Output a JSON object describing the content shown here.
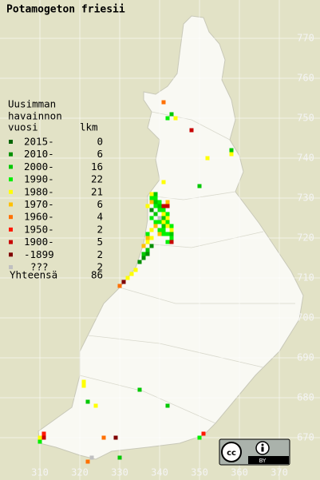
{
  "map_data": {
    "title": "Potamogeton friesii",
    "legend_heading": [
      "Uusimman",
      "havainnon",
      "vuosi"
    ],
    "count_heading": "lkm",
    "entries": [
      {
        "label": "2015-",
        "count": 0,
        "color": "#006400",
        "squares": []
      },
      {
        "label": "2010-",
        "count": 6,
        "color": "#009000",
        "squares": [
          [
            338,
            718
          ],
          [
            337,
            716
          ],
          [
            336,
            715
          ],
          [
            335,
            714
          ],
          [
            338,
            727
          ],
          [
            338,
            731
          ]
        ]
      },
      {
        "label": "2000-",
        "count": 16,
        "color": "#00c800",
        "squares": [
          [
            343,
            751
          ],
          [
            358,
            742
          ],
          [
            350,
            733
          ],
          [
            339,
            731
          ],
          [
            339,
            729
          ],
          [
            340,
            728
          ],
          [
            339,
            726
          ],
          [
            341,
            725
          ],
          [
            341,
            723
          ],
          [
            343,
            721
          ],
          [
            337,
            717
          ],
          [
            336,
            716
          ],
          [
            335,
            682
          ],
          [
            322,
            679
          ],
          [
            342,
            678
          ],
          [
            330,
            665
          ]
        ]
      },
      {
        "label": "1990-",
        "count": 22,
        "color": "#00f000",
        "squares": [
          [
            342,
            750
          ],
          [
            339,
            730
          ],
          [
            340,
            727
          ],
          [
            341,
            722
          ],
          [
            343,
            720
          ],
          [
            342,
            721
          ],
          [
            339,
            724
          ],
          [
            310,
            669
          ],
          [
            350,
            670
          ],
          [
            338,
            730
          ],
          [
            342,
            724
          ],
          [
            341,
            727
          ],
          [
            340,
            729
          ],
          [
            341,
            721
          ],
          [
            343,
            723
          ],
          [
            342,
            719
          ],
          [
            339,
            728
          ],
          [
            338,
            725
          ],
          [
            340,
            722
          ],
          [
            337,
            721
          ],
          [
            342,
            726
          ],
          [
            340,
            724
          ]
        ]
      },
      {
        "label": "1980-",
        "count": 21,
        "color": "#ffff00",
        "squares": [
          [
            344,
            750
          ],
          [
            358,
            741
          ],
          [
            352,
            740
          ],
          [
            341,
            734
          ],
          [
            338,
            731
          ],
          [
            337,
            728
          ],
          [
            341,
            726
          ],
          [
            342,
            725
          ],
          [
            341,
            724
          ],
          [
            342,
            723
          ],
          [
            343,
            722
          ],
          [
            338,
            722
          ],
          [
            338,
            720
          ],
          [
            337,
            719
          ],
          [
            334,
            712
          ],
          [
            333,
            711
          ],
          [
            332,
            710
          ],
          [
            321,
            684
          ],
          [
            321,
            683
          ],
          [
            324,
            678
          ],
          [
            310,
            670
          ]
        ]
      },
      {
        "label": "1970-",
        "count": 6,
        "color": "#ffc000",
        "squares": [
          [
            338,
            729
          ],
          [
            339,
            723
          ],
          [
            337,
            720
          ],
          [
            340,
            721
          ],
          [
            336,
            718
          ],
          [
            342,
            729
          ]
        ]
      },
      {
        "label": "1960-",
        "count": 4,
        "color": "#ff7000",
        "squares": [
          [
            341,
            754
          ],
          [
            330,
            708
          ],
          [
            326,
            670
          ],
          [
            322,
            664
          ]
        ]
      },
      {
        "label": "1950-",
        "count": 2,
        "color": "#ff1800",
        "squares": [
          [
            311,
            671
          ],
          [
            351,
            671
          ]
        ]
      },
      {
        "label": "1900-",
        "count": 5,
        "color": "#c80000",
        "squares": [
          [
            348,
            747
          ],
          [
            341,
            728
          ],
          [
            343,
            719
          ],
          [
            311,
            670
          ],
          [
            342,
            728
          ]
        ]
      },
      {
        "label": "-1899",
        "count": 2,
        "color": "#800000",
        "squares": [
          [
            331,
            709
          ],
          [
            329,
            670
          ]
        ]
      },
      {
        "label": "???",
        "count": 2,
        "color": "#c0c0c0",
        "squares": [
          [
            340,
            725
          ],
          [
            323,
            665
          ]
        ]
      }
    ],
    "total_label": "Yhteensä",
    "total": 86,
    "xticks": [
      310,
      320,
      330,
      340,
      350,
      360,
      370
    ],
    "yticks": [
      670,
      680,
      690,
      700,
      710,
      720,
      730,
      740,
      750,
      760,
      770
    ],
    "license": {
      "left": "cc",
      "right": "BY"
    }
  }
}
